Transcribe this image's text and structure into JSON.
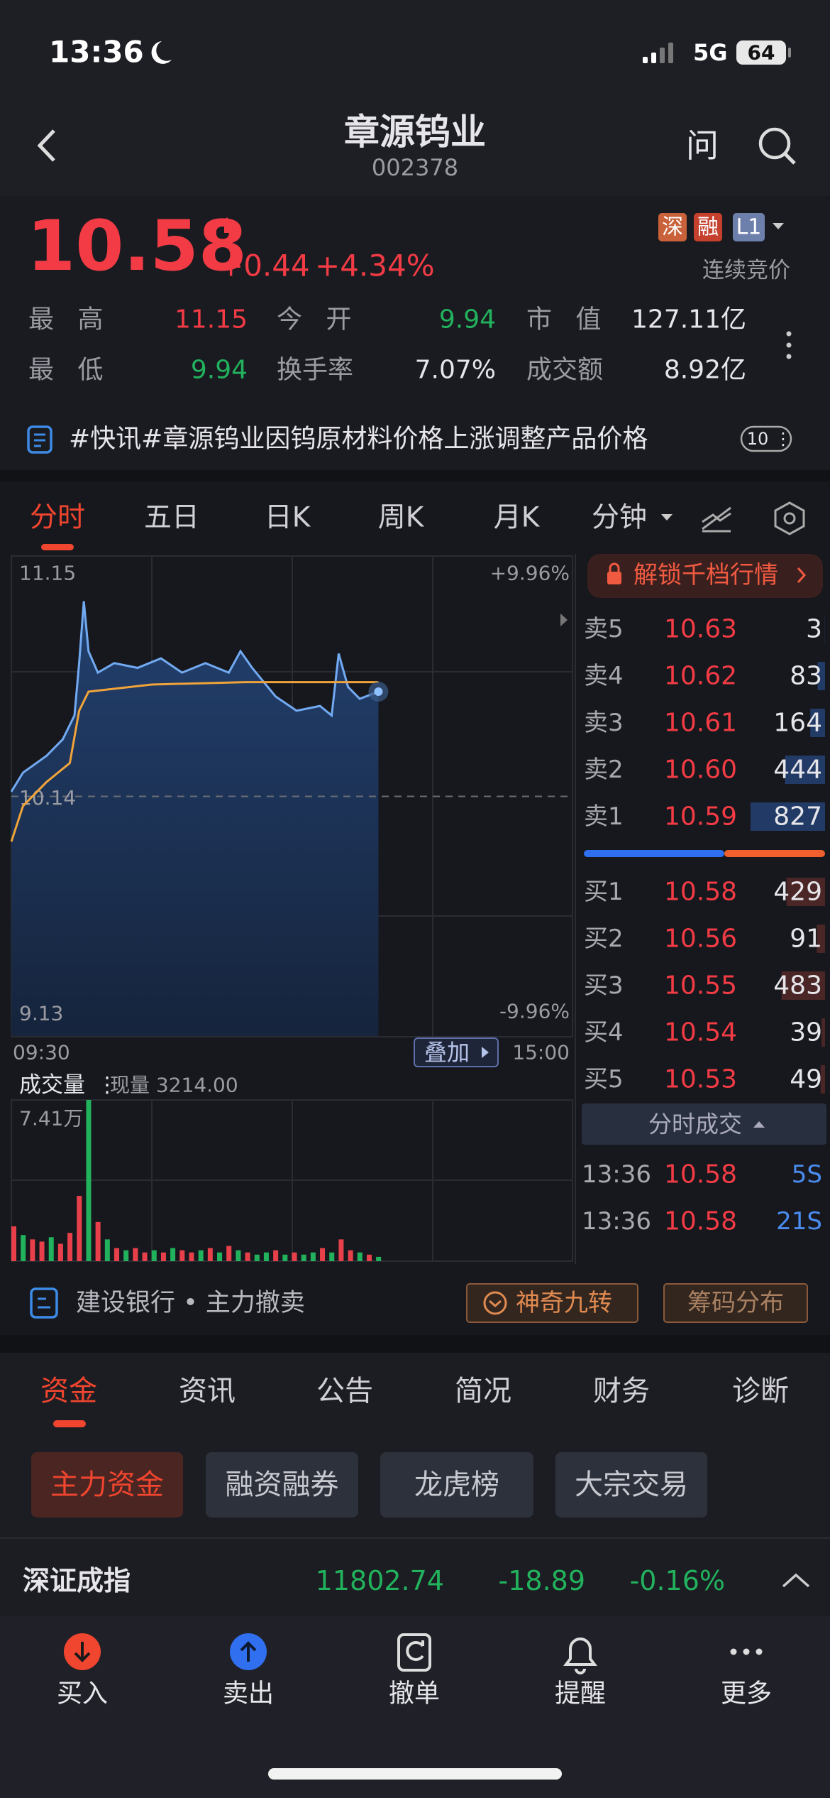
{
  "status": {
    "time": "13:36",
    "network": "5G",
    "battery": "64"
  },
  "header": {
    "title": "章源钨业",
    "code": "002378",
    "ask": "问"
  },
  "quote": {
    "price": "10.58",
    "change": "+0.44",
    "change_pct": "+4.34%",
    "badges": [
      {
        "text": "深",
        "color": "#c9623a"
      },
      {
        "text": "融",
        "color": "#c6402e"
      },
      {
        "text": "L1",
        "color": "#6d7fab"
      }
    ],
    "status": "连续竞价",
    "stats": [
      [
        {
          "label": "最 高",
          "value": "11.15",
          "color": "#f23b45"
        },
        {
          "label": "今 开",
          "value": "9.94",
          "color": "#22b25d"
        },
        {
          "label": "市 值",
          "value": "127.11亿",
          "color": "#e6e6ea"
        }
      ],
      [
        {
          "label": "最 低",
          "value": "9.94",
          "color": "#22b25d"
        },
        {
          "label": "换手率",
          "value": "7.07%",
          "color": "#e6e6ea"
        },
        {
          "label": "成交额",
          "value": "8.92亿",
          "color": "#e6e6ea"
        }
      ]
    ]
  },
  "news": {
    "text": "#快讯#章源钨业因钨原材料价格上涨调整产品价格",
    "count": "10"
  },
  "tabs": [
    "分时",
    "五日",
    "日K",
    "周K",
    "月K",
    "分钟"
  ],
  "chart_data": [
    {
      "type": "line",
      "xlim": [
        0,
        240
      ],
      "xticks": [
        {
          "value": 0,
          "label": "09:30"
        },
        {
          "value": 240,
          "label": "15:00"
        }
      ],
      "ylim": [
        9.13,
        11.15
      ],
      "yticks": [
        11.15,
        10.14,
        9.13
      ],
      "y2lim": [
        -9.96,
        9.96
      ],
      "y2ticks": [
        {
          "value": 9.96,
          "label": "+9.96%"
        },
        {
          "value": -9.96,
          "label": "-9.96%"
        }
      ],
      "series": [
        {
          "color": "#72aaf2",
          "x": [
            0,
            5,
            15,
            22,
            27,
            29,
            31,
            33,
            37,
            44,
            54,
            64,
            73,
            83,
            93,
            98,
            103,
            113,
            122,
            132,
            137,
            140,
            144,
            149,
            157
          ],
          "values": [
            10.16,
            10.24,
            10.31,
            10.38,
            10.48,
            10.7,
            10.96,
            10.75,
            10.66,
            10.7,
            10.68,
            10.72,
            10.66,
            10.7,
            10.66,
            10.75,
            10.68,
            10.56,
            10.5,
            10.52,
            10.48,
            10.74,
            10.6,
            10.55,
            10.58
          ]
        },
        {
          "color": "#f0a43a",
          "x": [
            0,
            5,
            15,
            25,
            29,
            33,
            60,
            100,
            157
          ],
          "values": [
            9.95,
            10.1,
            10.2,
            10.28,
            10.5,
            10.58,
            10.61,
            10.62,
            10.62
          ]
        }
      ]
    },
    {
      "type": "bar",
      "title": "成交量",
      "subtitle": "现量 3214.00",
      "xlim": [
        0,
        240
      ],
      "ylim": [
        0,
        7.41
      ],
      "yticks": [
        {
          "value": 7.41,
          "label": "7.41万"
        }
      ],
      "x": [
        0,
        4,
        8,
        12,
        16,
        20,
        24,
        28,
        32,
        36,
        40,
        44,
        48,
        52,
        56,
        60,
        64,
        68,
        72,
        76,
        80,
        84,
        88,
        92,
        96,
        100,
        104,
        108,
        112,
        116,
        120,
        124,
        128,
        132,
        136,
        140,
        144,
        148,
        152,
        156
      ],
      "values": [
        1.6,
        1.2,
        1.0,
        0.9,
        1.1,
        0.8,
        1.3,
        3.0,
        7.41,
        1.8,
        1.0,
        0.6,
        0.5,
        0.6,
        0.4,
        0.5,
        0.4,
        0.6,
        0.5,
        0.4,
        0.5,
        0.6,
        0.4,
        0.7,
        0.5,
        0.4,
        0.3,
        0.4,
        0.5,
        0.3,
        0.4,
        0.3,
        0.4,
        0.6,
        0.4,
        1.0,
        0.5,
        0.4,
        0.3,
        0.2
      ],
      "colors": [
        "#e8404a",
        "#22b25d",
        "#e8404a",
        "#e8404a",
        "#22b25d",
        "#e8404a",
        "#e8404a",
        "#e8404a",
        "#22b25d",
        "#e8404a",
        "#22b25d",
        "#e8404a",
        "#22b25d",
        "#e8404a",
        "#e8404a",
        "#22b25d",
        "#e8404a",
        "#22b25d",
        "#e8404a",
        "#e8404a",
        "#22b25d",
        "#e8404a",
        "#22b25d",
        "#e8404a",
        "#22b25d",
        "#e8404a",
        "#22b25d",
        "#22b25d",
        "#e8404a",
        "#22b25d",
        "#e8404a",
        "#22b25d",
        "#22b25d",
        "#e8404a",
        "#22b25d",
        "#e8404a",
        "#e8404a",
        "#22b25d",
        "#e8404a",
        "#22b25d"
      ]
    }
  ],
  "overlay": "叠加",
  "order_book": {
    "unlock": "解锁千档行情",
    "asks": [
      {
        "label": "卖5",
        "price": "10.63",
        "qty": 3
      },
      {
        "label": "卖4",
        "price": "10.62",
        "qty": 83
      },
      {
        "label": "卖3",
        "price": "10.61",
        "qty": 164
      },
      {
        "label": "卖2",
        "price": "10.60",
        "qty": 444
      },
      {
        "label": "卖1",
        "price": "10.59",
        "qty": 827
      }
    ],
    "bids": [
      {
        "label": "买1",
        "price": "10.58",
        "qty": 429
      },
      {
        "label": "买2",
        "price": "10.56",
        "qty": 91
      },
      {
        "label": "买3",
        "price": "10.55",
        "qty": 483
      },
      {
        "label": "买4",
        "price": "10.54",
        "qty": 39
      },
      {
        "label": "买5",
        "price": "10.53",
        "qty": 49
      }
    ],
    "trades_title": "分时成交",
    "trades": [
      {
        "time": "13:36",
        "price": "10.58",
        "vol": "5S"
      },
      {
        "time": "13:36",
        "price": "10.58",
        "vol": "21S"
      }
    ]
  },
  "footer_bar": {
    "text": "建设银行 • 主力撤卖",
    "buttons": [
      "神奇九转",
      "筹码分布"
    ]
  },
  "section_tabs": [
    "资金",
    "资讯",
    "公告",
    "简况",
    "财务",
    "诊断"
  ],
  "sub_tabs": [
    "主力资金",
    "融资融券",
    "龙虎榜",
    "大宗交易"
  ],
  "index": {
    "name": "深证成指",
    "value": "11802.74",
    "change": "-18.89",
    "pct": "-0.16%"
  },
  "nav": [
    "买入",
    "卖出",
    "撤单",
    "提醒",
    "更多"
  ]
}
